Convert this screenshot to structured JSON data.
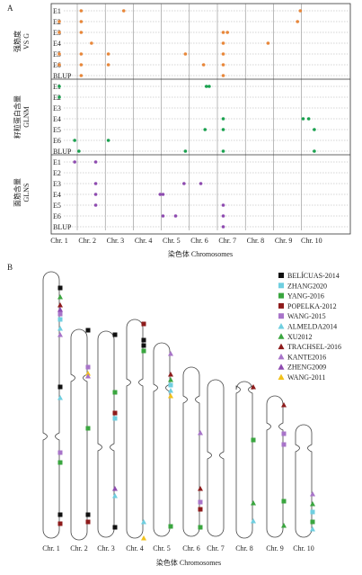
{
  "panel_a": {
    "label": "A",
    "x_title": "染色体 Chromosomes",
    "chromosomes": [
      "Chr. 1",
      "Chr. 2",
      "Chr. 3",
      "Chr. 4",
      "Chr. 5",
      "Chr. 6",
      "Chr. 7",
      "Chr. 8",
      "Chr. 9",
      "Chr. 10"
    ],
    "envs": [
      "E1",
      "E2",
      "E3",
      "E4",
      "E5",
      "E6",
      "BLUP"
    ],
    "groups": [
      {
        "title_cn": "强筋度",
        "title_en": "VS G",
        "color": "#e8873a",
        "markers": [
          {
            "env": "E1",
            "chr_pos": 1.78
          },
          {
            "env": "E1",
            "chr_pos": 3.3
          },
          {
            "env": "E1",
            "chr_pos": 9.6
          },
          {
            "env": "E2",
            "chr_pos": 1.0
          },
          {
            "env": "E2",
            "chr_pos": 1.78
          },
          {
            "env": "E2",
            "chr_pos": 9.5
          },
          {
            "env": "E3",
            "chr_pos": 1.0
          },
          {
            "env": "E3",
            "chr_pos": 1.78
          },
          {
            "env": "E3",
            "chr_pos": 6.85
          },
          {
            "env": "E3",
            "chr_pos": 7.0
          },
          {
            "env": "E4",
            "chr_pos": 2.15
          },
          {
            "env": "E4",
            "chr_pos": 6.85
          },
          {
            "env": "E4",
            "chr_pos": 8.45
          },
          {
            "env": "E5",
            "chr_pos": 1.0
          },
          {
            "env": "E5",
            "chr_pos": 1.78
          },
          {
            "env": "E5",
            "chr_pos": 2.75
          },
          {
            "env": "E5",
            "chr_pos": 5.5
          },
          {
            "env": "E5",
            "chr_pos": 6.85
          },
          {
            "env": "E6",
            "chr_pos": 1.0
          },
          {
            "env": "E6",
            "chr_pos": 1.78
          },
          {
            "env": "E6",
            "chr_pos": 2.75
          },
          {
            "env": "E6",
            "chr_pos": 6.15
          },
          {
            "env": "E6",
            "chr_pos": 6.85
          },
          {
            "env": "BLUP",
            "chr_pos": 1.78
          },
          {
            "env": "BLUP",
            "chr_pos": 6.85
          }
        ]
      },
      {
        "title_cn": "籽粒蛋白含量",
        "title_en": "GLNM",
        "color": "#1aa14f",
        "markers": [
          {
            "env": "E1",
            "chr_pos": 1.0
          },
          {
            "env": "E1",
            "chr_pos": 6.25
          },
          {
            "env": "E1",
            "chr_pos": 6.35
          },
          {
            "env": "E2",
            "chr_pos": 1.0
          },
          {
            "env": "E4",
            "chr_pos": 6.85
          },
          {
            "env": "E4",
            "chr_pos": 9.7
          },
          {
            "env": "E4",
            "chr_pos": 9.9
          },
          {
            "env": "E5",
            "chr_pos": 6.2
          },
          {
            "env": "E5",
            "chr_pos": 6.85
          },
          {
            "env": "E5",
            "chr_pos": 10.1
          },
          {
            "env": "E6",
            "chr_pos": 1.55
          },
          {
            "env": "E6",
            "chr_pos": 2.75
          },
          {
            "env": "BLUP",
            "chr_pos": 1.7
          },
          {
            "env": "BLUP",
            "chr_pos": 5.5
          },
          {
            "env": "BLUP",
            "chr_pos": 6.85
          },
          {
            "env": "BLUP",
            "chr_pos": 10.1
          }
        ]
      },
      {
        "title_cn": "面筋含量",
        "title_en": "GLNS",
        "color": "#8e4bb0",
        "markers": [
          {
            "env": "E1",
            "chr_pos": 1.55
          },
          {
            "env": "E1",
            "chr_pos": 2.3
          },
          {
            "env": "E3",
            "chr_pos": 2.3
          },
          {
            "env": "E3",
            "chr_pos": 5.45
          },
          {
            "env": "E3",
            "chr_pos": 6.05
          },
          {
            "env": "E4",
            "chr_pos": 2.3
          },
          {
            "env": "E4",
            "chr_pos": 4.6
          },
          {
            "env": "E4",
            "chr_pos": 4.7
          },
          {
            "env": "E5",
            "chr_pos": 2.3
          },
          {
            "env": "E5",
            "chr_pos": 6.85
          },
          {
            "env": "E6",
            "chr_pos": 4.7
          },
          {
            "env": "E6",
            "chr_pos": 5.15
          },
          {
            "env": "E6",
            "chr_pos": 6.85
          },
          {
            "env": "BLUP",
            "chr_pos": 6.85
          }
        ]
      }
    ]
  },
  "panel_b": {
    "label": "B",
    "x_title": "染色体 Chromosomes",
    "chromosomes": [
      "Chr. 1",
      "Chr. 2",
      "Chr. 3",
      "Chr. 4",
      "Chr. 5",
      "Chr. 6",
      "Chr. 7",
      "Chr. 8",
      "Chr. 9",
      "Chr. 10"
    ],
    "legend": [
      {
        "name": "BELÍCUAS-2014",
        "shape": "square",
        "color": "#111111"
      },
      {
        "name": "ZHANG2020",
        "shape": "square",
        "color": "#6fcfe0"
      },
      {
        "name": "YANG-2016",
        "shape": "square",
        "color": "#3aa63f"
      },
      {
        "name": "POPELKA-2012",
        "shape": "square",
        "color": "#8e1b1b"
      },
      {
        "name": "WANG-2015",
        "shape": "square",
        "color": "#a874c9"
      },
      {
        "name": "ALMELDA2014",
        "shape": "triangle",
        "color": "#6fcfe0"
      },
      {
        "name": "XU2012",
        "shape": "triangle",
        "color": "#3aa63f"
      },
      {
        "name": "TRACHSEL-2016",
        "shape": "triangle",
        "color": "#8e1b1b"
      },
      {
        "name": "KANTE2016",
        "shape": "triangle",
        "color": "#a874c9"
      },
      {
        "name": "ZHENG2009",
        "shape": "triangle",
        "color": "#8e4bb0"
      },
      {
        "name": "WANG-2011",
        "shape": "triangle",
        "color": "#f2c21b"
      }
    ]
  }
}
